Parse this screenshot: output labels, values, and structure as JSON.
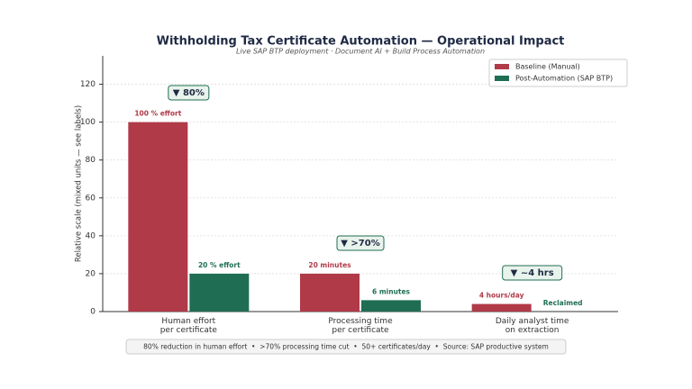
{
  "chart_data": {
    "type": "bar",
    "title": "Withholding Tax Certificate Automation — Operational Impact",
    "subtitle": "Live SAP BTP deployment · Document AI + Build Process Automation",
    "y_label": "Relative scale (mixed units — see labels)",
    "categories": [
      [
        "Human effort",
        "per certificate"
      ],
      [
        "Processing time",
        "per certificate"
      ],
      [
        "Daily analyst time",
        "on extraction"
      ]
    ],
    "series": [
      {
        "name": "Baseline (Manual)",
        "color": "#b03a48",
        "values": [
          100,
          20,
          4
        ],
        "value_labels": [
          "100 % effort",
          "20 minutes",
          "4 hours/day"
        ]
      },
      {
        "name": "Post-Automation (SAP BTP)",
        "color": "#1f6e54",
        "values": [
          20,
          6,
          0
        ],
        "value_labels": [
          "20 % effort",
          "6 minutes",
          "Reclaimed"
        ]
      }
    ],
    "annotations": [
      "▼ 80%",
      "▼ >70%",
      "▼ ~4 hrs"
    ],
    "ylim": [
      0,
      135
    ],
    "yticks": [
      0,
      20,
      40,
      60,
      80,
      100,
      120
    ],
    "grid": true,
    "legend": "upper right",
    "footer": "80% reduction in human effort  •  >70% processing time cut  •  50+ certificates/day  •  Source: SAP productive system"
  }
}
